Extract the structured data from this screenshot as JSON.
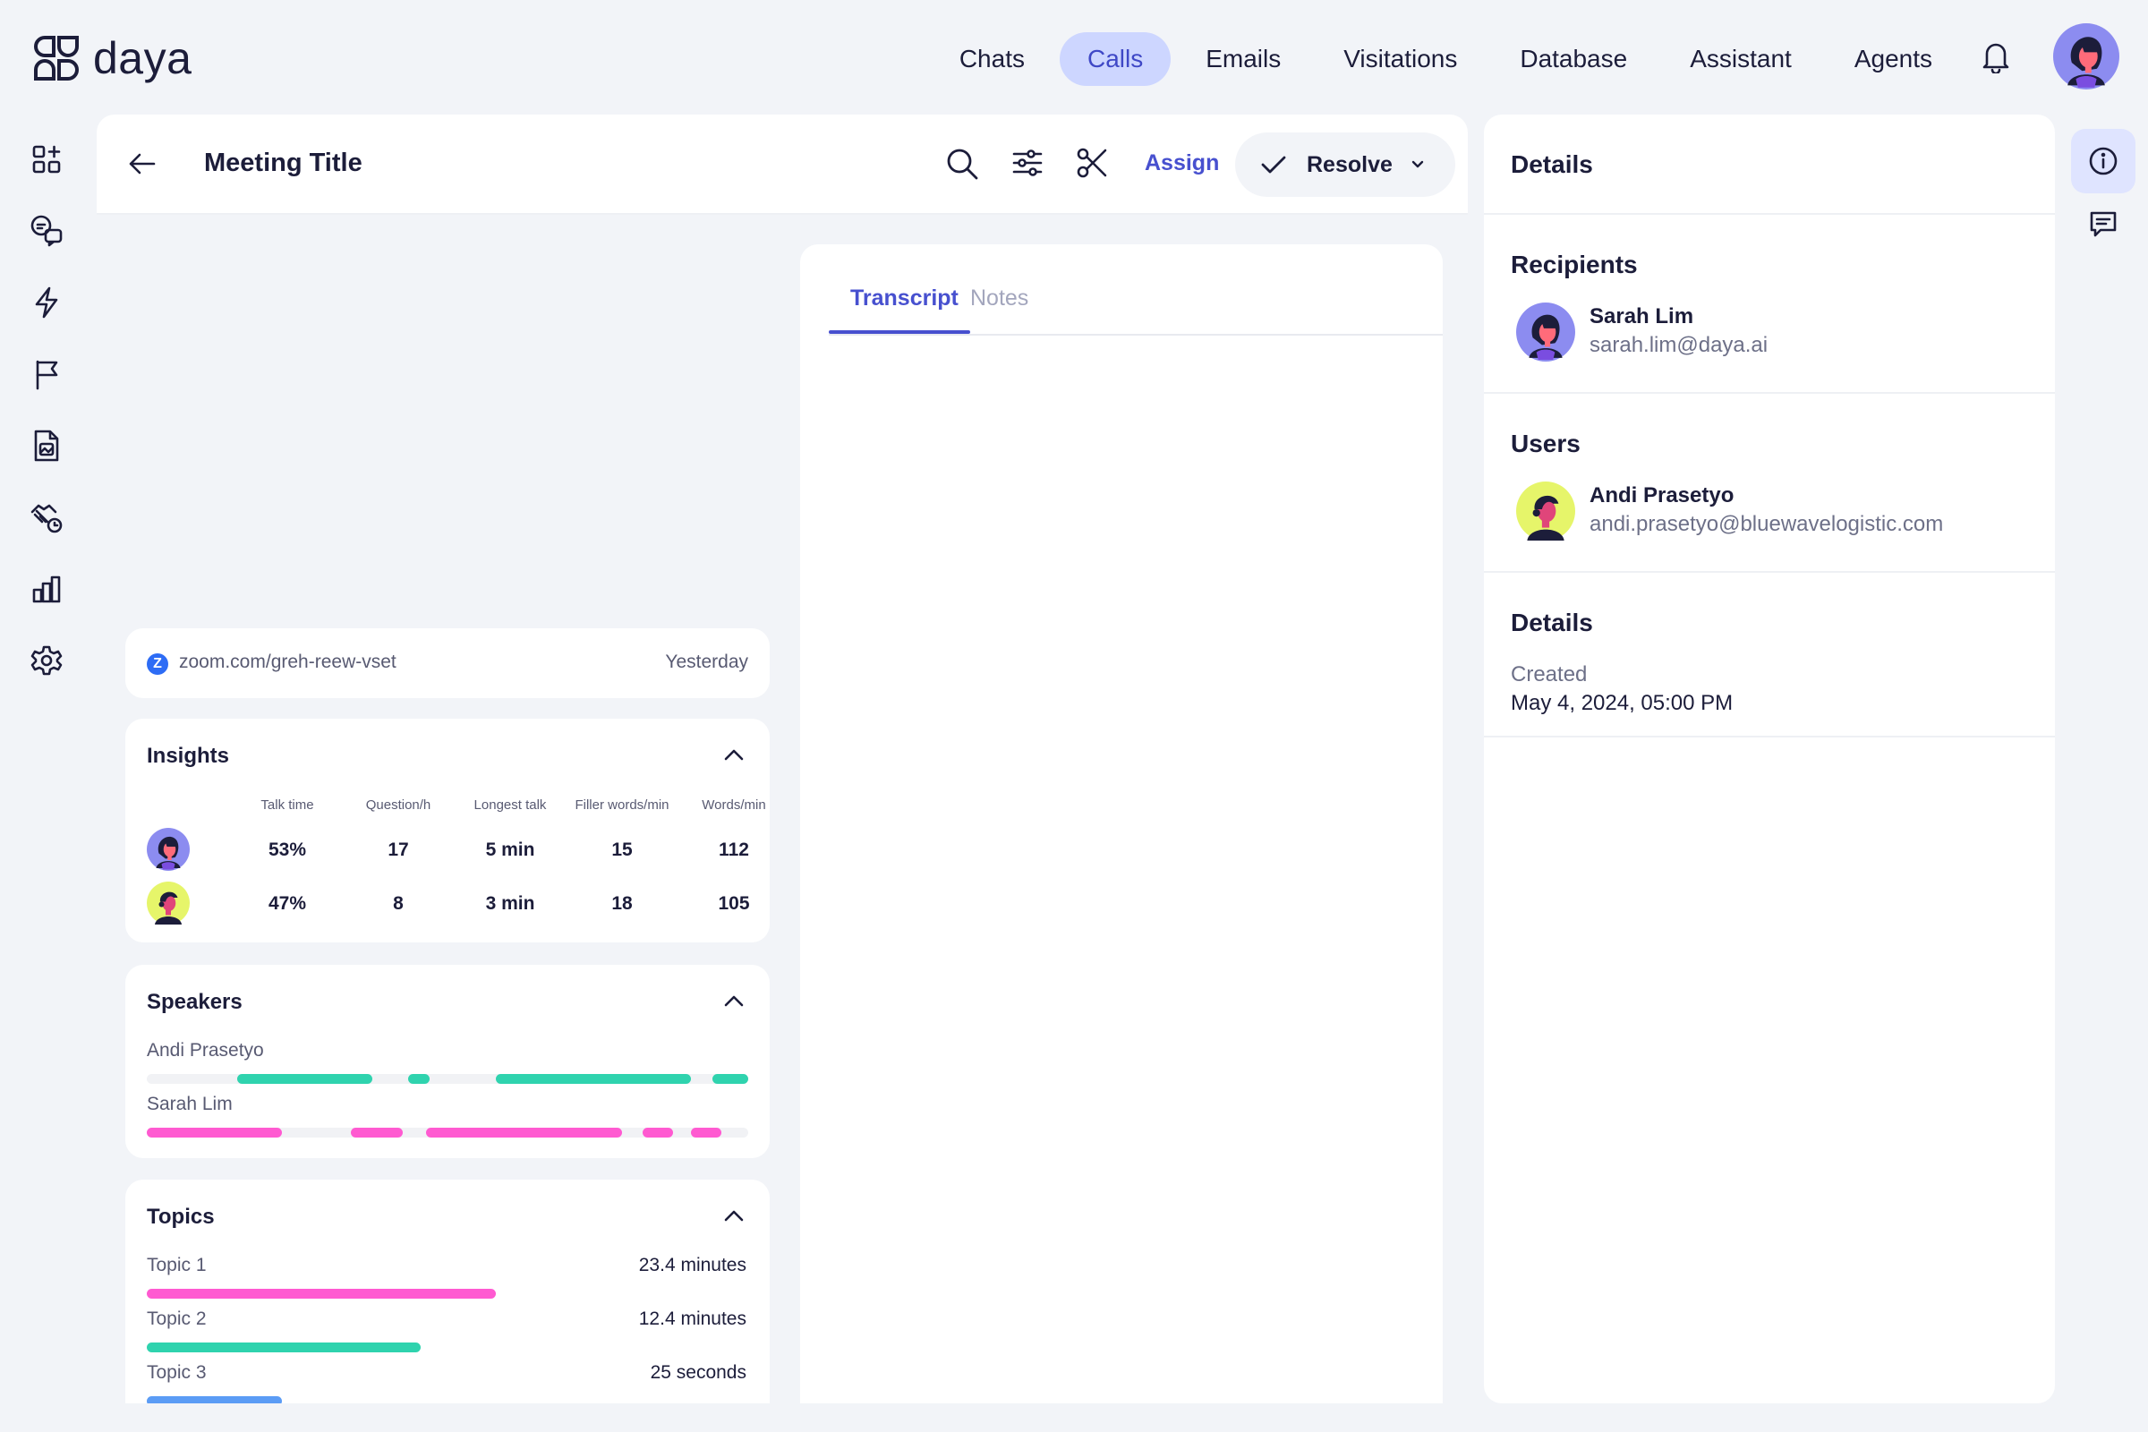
{
  "app": {
    "name": "daya"
  },
  "nav": {
    "items": [
      {
        "label": "Chats"
      },
      {
        "label": "Calls",
        "active": true
      },
      {
        "label": "Emails"
      },
      {
        "label": "Visitations"
      },
      {
        "label": "Database"
      },
      {
        "label": "Assistant"
      },
      {
        "label": "Agents"
      }
    ]
  },
  "meeting": {
    "title": "Meeting Title",
    "assign_label": "Assign",
    "resolve_label": "Resolve",
    "link": "zoom.com/greh-reew-vset",
    "link_icon_letter": "Z",
    "date": "Yesterday"
  },
  "insights": {
    "title": "Insights",
    "columns": [
      "Talk time",
      "Question/h",
      "Longest talk",
      "Filler words/min",
      "Words/min"
    ],
    "rows": [
      {
        "speaker": "Sarah Lim",
        "values": [
          "53%",
          "17",
          "5 min",
          "15",
          "112"
        ]
      },
      {
        "speaker": "Andi Prasetyo",
        "values": [
          "47%",
          "8",
          "3 min",
          "18",
          "105"
        ]
      }
    ]
  },
  "speakers": {
    "title": "Speakers",
    "items": [
      {
        "name": "Andi Prasetyo",
        "color": "#2fd3ae",
        "segments": [
          [
            0.15,
            0.375
          ],
          [
            0.435,
            0.47
          ],
          [
            0.58,
            0.905
          ],
          [
            0.94,
            1.0
          ]
        ]
      },
      {
        "name": "Sarah Lim",
        "color": "#ff5ad1",
        "segments": [
          [
            0.0,
            0.225
          ],
          [
            0.34,
            0.425
          ],
          [
            0.465,
            0.79
          ],
          [
            0.825,
            0.875
          ],
          [
            0.905,
            0.955
          ]
        ]
      }
    ]
  },
  "topics": {
    "title": "Topics",
    "items": [
      {
        "name": "Topic 1",
        "duration": "23.4 minutes",
        "fraction": 0.58,
        "color": "#ff5ad1"
      },
      {
        "name": "Topic 2",
        "duration": "12.4 minutes",
        "fraction": 0.455,
        "color": "#2fd3ae"
      },
      {
        "name": "Topic 3",
        "duration": "25 seconds",
        "fraction": 0.225,
        "color": "#5b9cf5"
      }
    ]
  },
  "transcript": {
    "tabs": [
      {
        "label": "Transcript",
        "active": true
      },
      {
        "label": "Notes"
      }
    ]
  },
  "details": {
    "title": "Details",
    "recipients": {
      "title": "Recipients",
      "name": "Sarah Lim",
      "email": "sarah.lim@daya.ai"
    },
    "users": {
      "title": "Users",
      "name": "Andi Prasetyo",
      "email": "andi.prasetyo@bluewavelogistic.com"
    },
    "meta": {
      "title": "Details",
      "created_label": "Created",
      "created_value": "May 4, 2024, 05:00 PM"
    }
  },
  "colors": {
    "accent": "#4750cf",
    "nav_active_bg": "#cdd6ff",
    "speaker_teal": "#2fd3ae",
    "speaker_pink": "#ff5ad1",
    "topic_blue": "#5b9cf5"
  }
}
